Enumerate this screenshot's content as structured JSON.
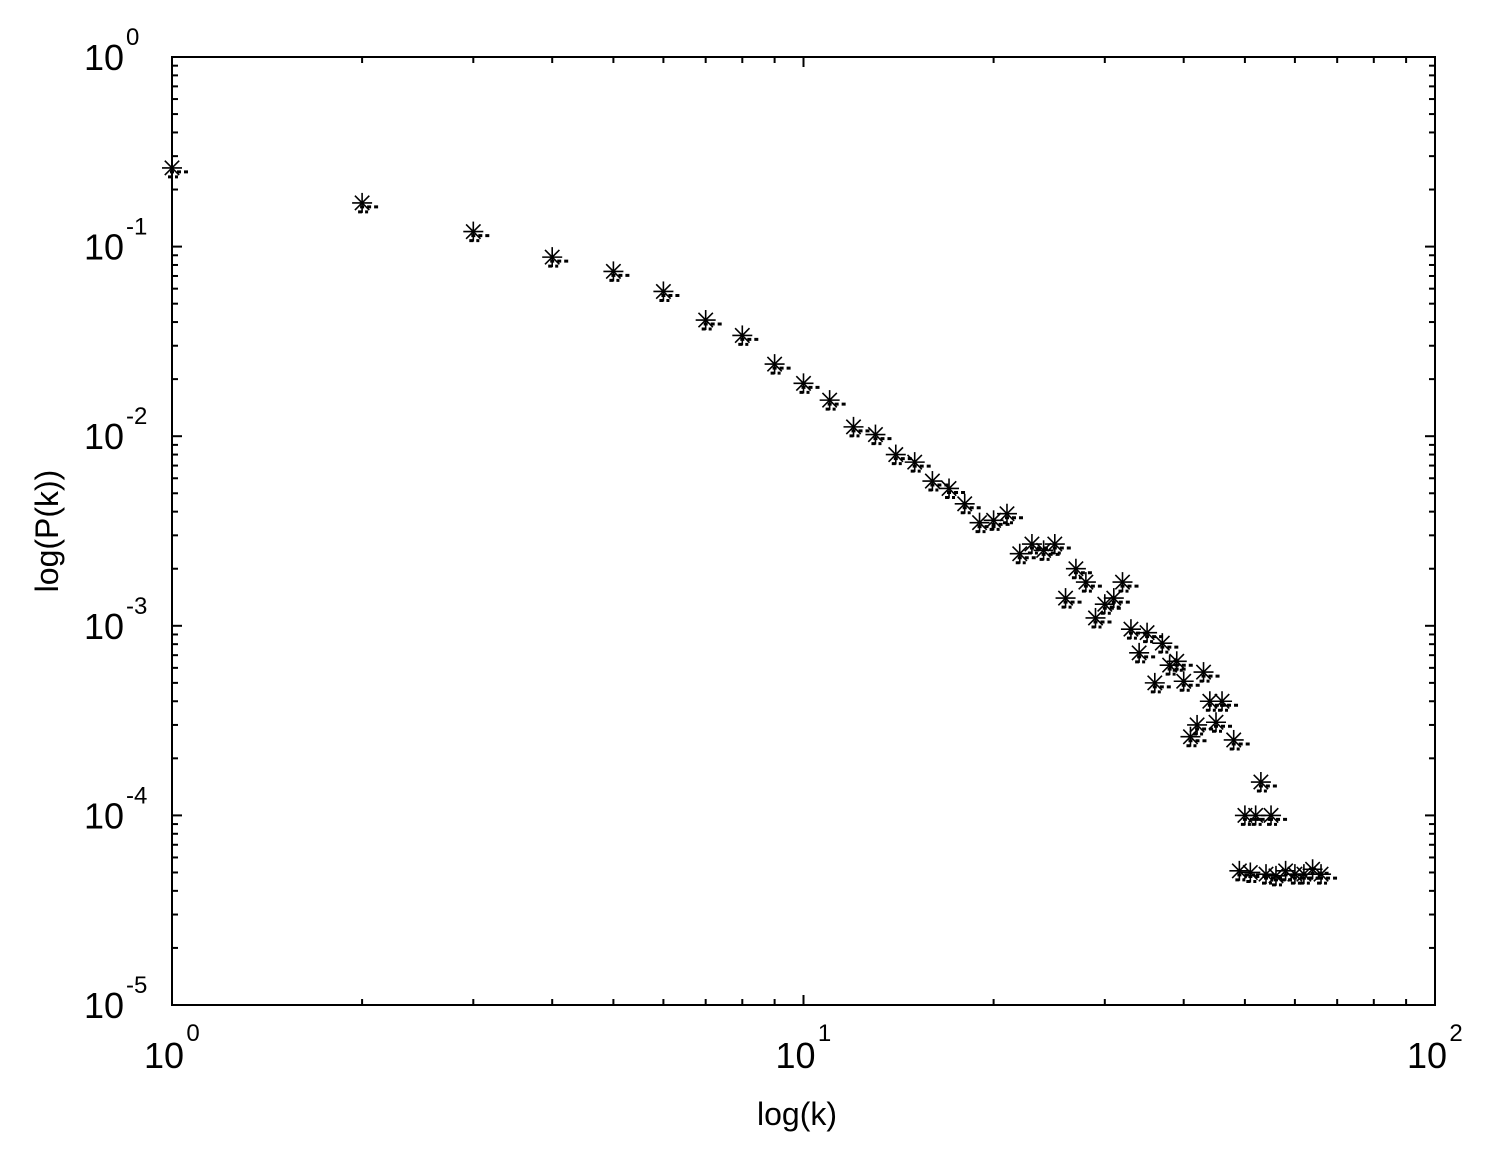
{
  "chart_data": {
    "type": "scatter",
    "title": "",
    "xlabel": "log(k)",
    "ylabel": "log(P(k))",
    "xscale": "log",
    "yscale": "log",
    "xlim": [
      1,
      100
    ],
    "ylim": [
      1e-05,
      1
    ],
    "grid": false,
    "marker": "asterisk",
    "x_ticks": [
      {
        "base": "10",
        "exp": "0"
      },
      {
        "base": "10",
        "exp": "1"
      },
      {
        "base": "10",
        "exp": "2"
      }
    ],
    "y_ticks": [
      {
        "base": "10",
        "exp": "0"
      },
      {
        "base": "10",
        "exp": "-1"
      },
      {
        "base": "10",
        "exp": "-2"
      },
      {
        "base": "10",
        "exp": "-3"
      },
      {
        "base": "10",
        "exp": "-4"
      },
      {
        "base": "10",
        "exp": "-5"
      }
    ],
    "points": [
      [
        1,
        0.26
      ],
      [
        2,
        0.17
      ],
      [
        3,
        0.12
      ],
      [
        4,
        0.088
      ],
      [
        5,
        0.074
      ],
      [
        6,
        0.058
      ],
      [
        7,
        0.041
      ],
      [
        8,
        0.034
      ],
      [
        9,
        0.024
      ],
      [
        10,
        0.019
      ],
      [
        11,
        0.0155
      ],
      [
        12,
        0.0112
      ],
      [
        13,
        0.0102
      ],
      [
        14,
        0.008
      ],
      [
        15,
        0.0073
      ],
      [
        16,
        0.0058
      ],
      [
        17,
        0.0053
      ],
      [
        18,
        0.0044
      ],
      [
        19,
        0.0035
      ],
      [
        20,
        0.0036
      ],
      [
        21,
        0.0039
      ],
      [
        22,
        0.0024
      ],
      [
        23,
        0.0027
      ],
      [
        24,
        0.0025
      ],
      [
        25,
        0.0027
      ],
      [
        26,
        0.0014
      ],
      [
        27,
        0.002
      ],
      [
        28,
        0.0017
      ],
      [
        29,
        0.0011
      ],
      [
        30,
        0.0013
      ],
      [
        31,
        0.0014
      ],
      [
        32,
        0.0017
      ],
      [
        33,
        0.00096
      ],
      [
        34,
        0.00072
      ],
      [
        35,
        0.00092
      ],
      [
        36,
        0.0005
      ],
      [
        37,
        0.00081
      ],
      [
        38,
        0.00062
      ],
      [
        39,
        0.00065
      ],
      [
        40,
        0.00051
      ],
      [
        41,
        0.00026
      ],
      [
        42,
        0.0003
      ],
      [
        43,
        0.00057
      ],
      [
        44,
        0.0004
      ],
      [
        45,
        0.00031
      ],
      [
        46,
        0.0004
      ],
      [
        48,
        0.00025
      ],
      [
        49,
        5.1e-05
      ],
      [
        50,
        0.0001
      ],
      [
        51,
        5e-05
      ],
      [
        52,
        0.0001
      ],
      [
        53,
        0.00015
      ],
      [
        54,
        4.9e-05
      ],
      [
        55,
        0.0001
      ],
      [
        56,
        4.8e-05
      ],
      [
        58,
        5.1e-05
      ],
      [
        60,
        4.9e-05
      ],
      [
        62,
        4.9e-05
      ],
      [
        64,
        5.2e-05
      ],
      [
        66,
        4.9e-05
      ]
    ]
  }
}
